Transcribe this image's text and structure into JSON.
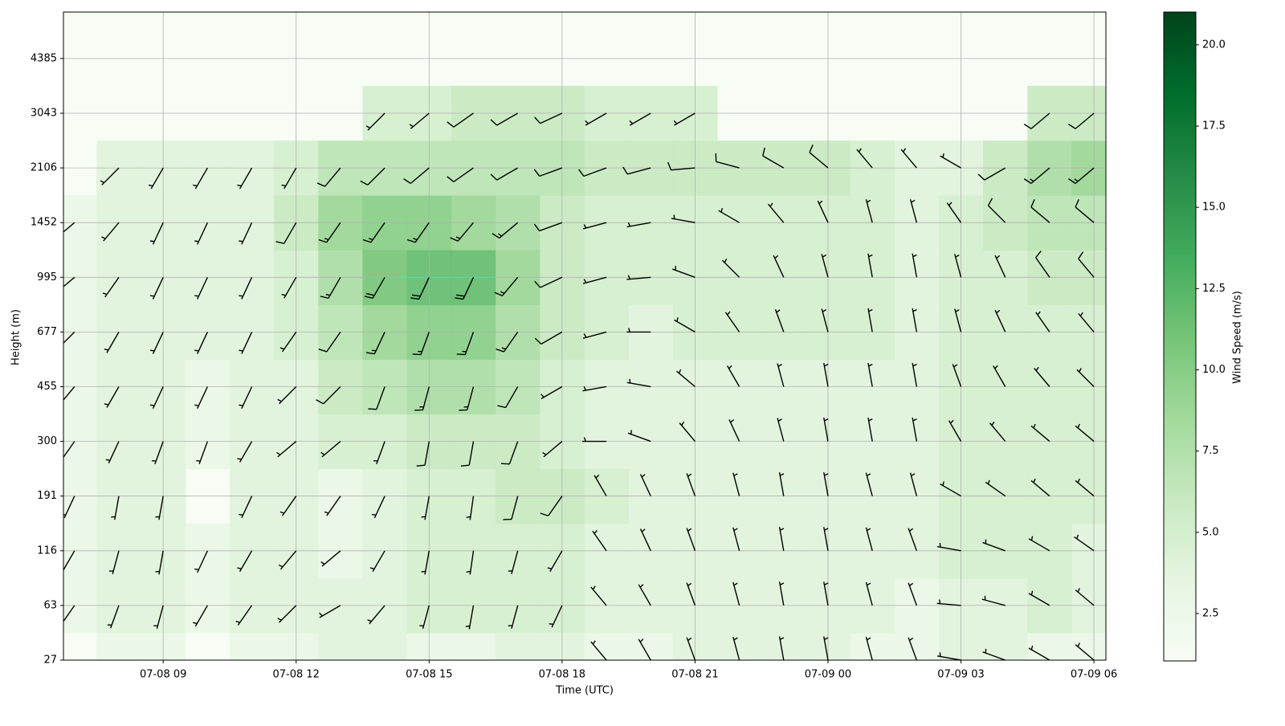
{
  "chart_data": {
    "type": "barbs",
    "xlabel": "Time (UTC)",
    "ylabel": "Height (m)",
    "colorbar_label": "Wind Speed (m/s)",
    "grid": true,
    "colormap": [
      "#f7fcf5",
      "#e5f5e0",
      "#c7e9c0",
      "#a1d99b",
      "#74c476",
      "#41ab5d",
      "#238b45",
      "#006d2c",
      "#00441b"
    ],
    "barb_color": "#000000",
    "xlim": [
      6.75,
      30.27
    ],
    "xticks": [
      {
        "value": 9,
        "label": "07-08 09"
      },
      {
        "value": 12,
        "label": "07-08 12"
      },
      {
        "value": 15,
        "label": "07-08 15"
      },
      {
        "value": 18,
        "label": "07-08 18"
      },
      {
        "value": 21,
        "label": "07-08 21"
      },
      {
        "value": 24,
        "label": "07-09 00"
      },
      {
        "value": 27,
        "label": "07-09 03"
      },
      {
        "value": 30,
        "label": "07-09 06"
      }
    ],
    "ylim": [
      0,
      11.85
    ],
    "yticks": [
      {
        "value": 0,
        "label": "27"
      },
      {
        "value": 1,
        "label": "63"
      },
      {
        "value": 2,
        "label": "116"
      },
      {
        "value": 3,
        "label": "191"
      },
      {
        "value": 4,
        "label": "300"
      },
      {
        "value": 5,
        "label": "455"
      },
      {
        "value": 6,
        "label": "677"
      },
      {
        "value": 7,
        "label": "995"
      },
      {
        "value": 8,
        "label": "1452"
      },
      {
        "value": 9,
        "label": "2106"
      },
      {
        "value": 10,
        "label": "3043"
      },
      {
        "value": 11,
        "label": "4385"
      }
    ],
    "clim": [
      1.04,
      21.01
    ],
    "cticks": [
      2.5,
      {
        "value": 5,
        "label": "5.0"
      },
      7.5,
      {
        "value": 10,
        "label": "10.0"
      },
      12.5,
      {
        "value": 15,
        "label": "15.0"
      },
      17.5,
      {
        "value": 20,
        "label": "20.0"
      }
    ],
    "x": [
      7,
      8,
      9,
      10,
      11,
      12,
      13,
      14,
      15,
      16,
      17,
      18,
      19,
      20,
      21,
      22,
      23,
      24,
      25,
      26,
      27,
      28,
      29,
      30
    ],
    "levels": [
      0,
      1,
      2,
      3,
      4,
      5,
      6,
      7,
      8,
      9,
      10
    ],
    "speed": [
      [
        null,
        3,
        3,
        null,
        3,
        3,
        4,
        4,
        3,
        3,
        4,
        4,
        3,
        3,
        4,
        4,
        4,
        4,
        3,
        3,
        4,
        4,
        3,
        3
      ],
      [
        3,
        4,
        4,
        3,
        4,
        4,
        4,
        4,
        5,
        5,
        5,
        5,
        4,
        4,
        4,
        4,
        4,
        4,
        4,
        3,
        4,
        4,
        5,
        4
      ],
      [
        3,
        4,
        4,
        3,
        4,
        4,
        3,
        4,
        5,
        5,
        5,
        5,
        4,
        4,
        4,
        4,
        4,
        4,
        4,
        4,
        5,
        5,
        5,
        4
      ],
      [
        3,
        4,
        4,
        null,
        4,
        4,
        3,
        4,
        5,
        5,
        6,
        6,
        5,
        4,
        4,
        4,
        4,
        4,
        4,
        4,
        5,
        5,
        5,
        5
      ],
      [
        3,
        4,
        4,
        3,
        4,
        4,
        5,
        5,
        6,
        6,
        6,
        5,
        4,
        4,
        4,
        4,
        4,
        4,
        4,
        4,
        5,
        5,
        5,
        5
      ],
      [
        3,
        4,
        4,
        3,
        4,
        4,
        6,
        7,
        8,
        8,
        7,
        5,
        4,
        4,
        4,
        4,
        4,
        4,
        4,
        4,
        5,
        5,
        5,
        5
      ],
      [
        3,
        4,
        4,
        4,
        4,
        5,
        7,
        9,
        10,
        10,
        8,
        6,
        5,
        4,
        5,
        5,
        5,
        5,
        5,
        4,
        5,
        5,
        5,
        5
      ],
      [
        3,
        4,
        4,
        4,
        4,
        5,
        8,
        11,
        12,
        12,
        9,
        6,
        5,
        5,
        5,
        5,
        5,
        5,
        5,
        4,
        5,
        5,
        6,
        6
      ],
      [
        3,
        4,
        4,
        4,
        4,
        6,
        9,
        10,
        10,
        9,
        8,
        6,
        5,
        5,
        5,
        5,
        5,
        5,
        5,
        4,
        5,
        6,
        7,
        7
      ],
      [
        null,
        4,
        4,
        4,
        4,
        5,
        7,
        7,
        7,
        7,
        7,
        7,
        6,
        6,
        6,
        6,
        6,
        6,
        5,
        4,
        4,
        6,
        8,
        9
      ],
      [
        null,
        null,
        null,
        null,
        null,
        null,
        null,
        5,
        5,
        6,
        6,
        6,
        5,
        5,
        5,
        null,
        null,
        null,
        null,
        null,
        null,
        null,
        6,
        6
      ]
    ],
    "direction": [
      [
        null,
        210,
        200,
        null,
        215,
        230,
        240,
        230,
        200,
        190,
        195,
        200,
        320,
        330,
        340,
        345,
        350,
        350,
        345,
        340,
        280,
        290,
        300,
        310
      ],
      [
        215,
        200,
        195,
        210,
        215,
        225,
        240,
        220,
        195,
        190,
        195,
        205,
        320,
        330,
        340,
        345,
        350,
        350,
        345,
        340,
        275,
        285,
        300,
        310
      ],
      [
        210,
        195,
        190,
        205,
        210,
        220,
        230,
        210,
        190,
        188,
        195,
        210,
        325,
        335,
        340,
        345,
        350,
        350,
        345,
        340,
        280,
        290,
        300,
        305
      ],
      [
        205,
        190,
        190,
        null,
        205,
        215,
        215,
        205,
        190,
        188,
        195,
        215,
        330,
        335,
        340,
        345,
        350,
        350,
        345,
        345,
        300,
        305,
        310,
        310
      ],
      [
        215,
        205,
        200,
        200,
        210,
        230,
        230,
        200,
        190,
        190,
        200,
        230,
        270,
        290,
        320,
        335,
        345,
        350,
        350,
        350,
        330,
        320,
        310,
        310
      ],
      [
        220,
        210,
        205,
        205,
        205,
        225,
        225,
        200,
        195,
        195,
        210,
        240,
        260,
        280,
        310,
        330,
        345,
        350,
        350,
        350,
        340,
        330,
        320,
        315
      ],
      [
        225,
        210,
        205,
        205,
        205,
        215,
        215,
        205,
        200,
        200,
        215,
        240,
        255,
        270,
        300,
        325,
        340,
        345,
        350,
        350,
        345,
        335,
        325,
        320
      ],
      [
        230,
        215,
        205,
        205,
        205,
        210,
        210,
        210,
        205,
        205,
        220,
        245,
        255,
        265,
        290,
        315,
        335,
        345,
        350,
        350,
        345,
        335,
        325,
        320
      ],
      [
        230,
        220,
        205,
        205,
        205,
        210,
        215,
        215,
        215,
        220,
        230,
        250,
        255,
        260,
        280,
        300,
        320,
        335,
        345,
        345,
        325,
        315,
        310,
        310
      ],
      [
        null,
        225,
        210,
        210,
        210,
        210,
        220,
        225,
        230,
        235,
        240,
        250,
        250,
        255,
        265,
        285,
        300,
        310,
        320,
        320,
        300,
        240,
        230,
        230
      ],
      [
        null,
        null,
        null,
        null,
        null,
        null,
        null,
        225,
        230,
        235,
        240,
        245,
        240,
        240,
        240,
        null,
        null,
        null,
        null,
        null,
        null,
        null,
        230,
        230
      ]
    ]
  }
}
